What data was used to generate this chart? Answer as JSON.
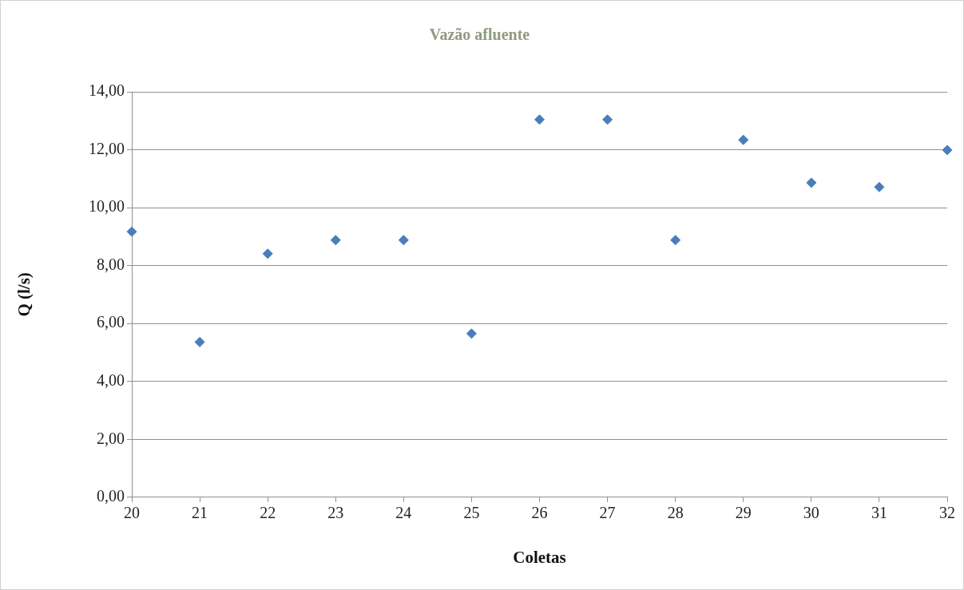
{
  "chart_data": {
    "type": "scatter",
    "title": "Vazão afluente",
    "xlabel": "Coletas",
    "ylabel": "Q (l/s)",
    "x": [
      20,
      21,
      22,
      23,
      24,
      25,
      26,
      27,
      28,
      29,
      30,
      31,
      32
    ],
    "series": [
      {
        "color": "#4a7ebb",
        "values": [
          9.17,
          5.36,
          8.41,
          8.88,
          8.88,
          5.65,
          13.04,
          13.04,
          8.88,
          12.34,
          10.86,
          10.71,
          11.99
        ]
      }
    ],
    "xlim": [
      20,
      32
    ],
    "xticks": [
      20,
      21,
      22,
      23,
      24,
      25,
      26,
      27,
      28,
      29,
      30,
      31,
      32
    ],
    "ylim": [
      0,
      14
    ],
    "yticks": [
      {
        "value": 0,
        "label": "0,00"
      },
      {
        "value": 2,
        "label": "2,00"
      },
      {
        "value": 4,
        "label": "4,00"
      },
      {
        "value": 6,
        "label": "6,00"
      },
      {
        "value": 8,
        "label": "8,00"
      },
      {
        "value": 10,
        "label": "10,00"
      },
      {
        "value": 12,
        "label": "12,00"
      },
      {
        "value": 14,
        "label": "14,00"
      }
    ],
    "grid": "y",
    "legend": false,
    "marker": "diamond"
  }
}
